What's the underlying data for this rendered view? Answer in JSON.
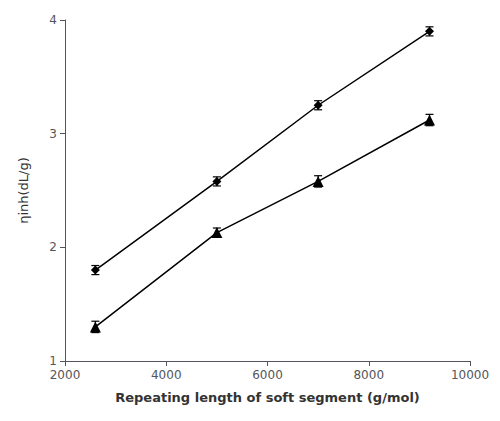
{
  "chart_data": {
    "type": "line",
    "xlabel": "Repeating length of soft segment (g/mol)",
    "ylabel": "ηinh(dL/g)",
    "x": [
      2600,
      5000,
      7000,
      9200
    ],
    "series": [
      {
        "values": [
          1.8,
          2.58,
          3.25,
          3.9
        ],
        "yerr": [
          0.04,
          0.04,
          0.04,
          0.04
        ],
        "marker": "diamond",
        "color": "#000000"
      },
      {
        "values": [
          1.3,
          2.13,
          2.58,
          3.12
        ],
        "yerr": [
          0.05,
          0.04,
          0.05,
          0.05
        ],
        "marker": "triangle",
        "color": "#000000"
      }
    ],
    "xlim": [
      2000,
      10000
    ],
    "ylim": [
      1.0,
      4.0
    ],
    "xticks": [
      2000,
      4000,
      6000,
      8000,
      10000
    ],
    "yticks": [
      1,
      2,
      3,
      4
    ],
    "grid": false
  }
}
